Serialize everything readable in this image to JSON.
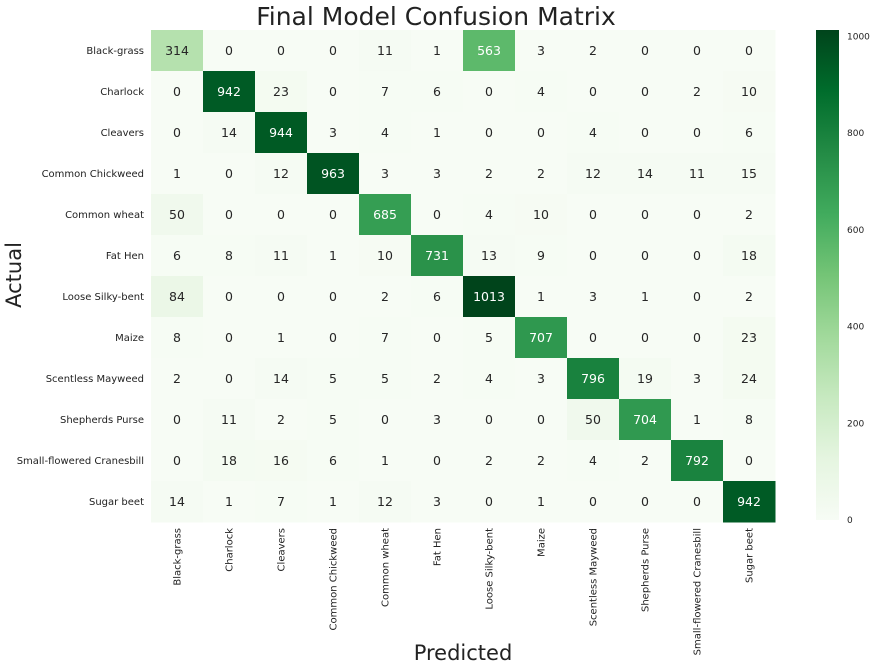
{
  "chart_data": {
    "type": "heatmap",
    "title": "Final Model Confusion Matrix",
    "xlabel": "Predicted",
    "ylabel": "Actual",
    "categories": [
      "Black-grass",
      "Charlock",
      "Cleavers",
      "Common Chickweed",
      "Common wheat",
      "Fat Hen",
      "Loose Silky-bent",
      "Maize",
      "Scentless Mayweed",
      "Shepherds Purse",
      "Small-flowered Cranesbill",
      "Sugar beet"
    ],
    "matrix": [
      [
        314,
        0,
        0,
        0,
        11,
        1,
        563,
        3,
        2,
        0,
        0,
        0
      ],
      [
        0,
        942,
        23,
        0,
        7,
        6,
        0,
        4,
        0,
        0,
        2,
        10
      ],
      [
        0,
        14,
        944,
        3,
        4,
        1,
        0,
        0,
        4,
        0,
        0,
        6
      ],
      [
        1,
        0,
        12,
        963,
        3,
        3,
        2,
        2,
        12,
        14,
        11,
        15
      ],
      [
        50,
        0,
        0,
        0,
        685,
        0,
        4,
        10,
        0,
        0,
        0,
        2
      ],
      [
        6,
        8,
        11,
        1,
        10,
        731,
        13,
        9,
        0,
        0,
        0,
        18
      ],
      [
        84,
        0,
        0,
        0,
        2,
        6,
        1013,
        1,
        3,
        1,
        0,
        2
      ],
      [
        8,
        0,
        1,
        0,
        7,
        0,
        5,
        707,
        0,
        0,
        0,
        23
      ],
      [
        2,
        0,
        14,
        5,
        5,
        2,
        4,
        3,
        796,
        19,
        3,
        24
      ],
      [
        0,
        11,
        2,
        5,
        0,
        3,
        0,
        0,
        50,
        704,
        1,
        8
      ],
      [
        0,
        18,
        16,
        6,
        1,
        0,
        2,
        2,
        4,
        2,
        792,
        0
      ],
      [
        14,
        1,
        7,
        1,
        12,
        3,
        0,
        1,
        0,
        0,
        0,
        942
      ]
    ],
    "colorbar": {
      "min": 0,
      "max": 1013,
      "ticks": [
        0,
        200,
        400,
        600,
        800,
        1000
      ]
    },
    "colormap": "Greens"
  }
}
